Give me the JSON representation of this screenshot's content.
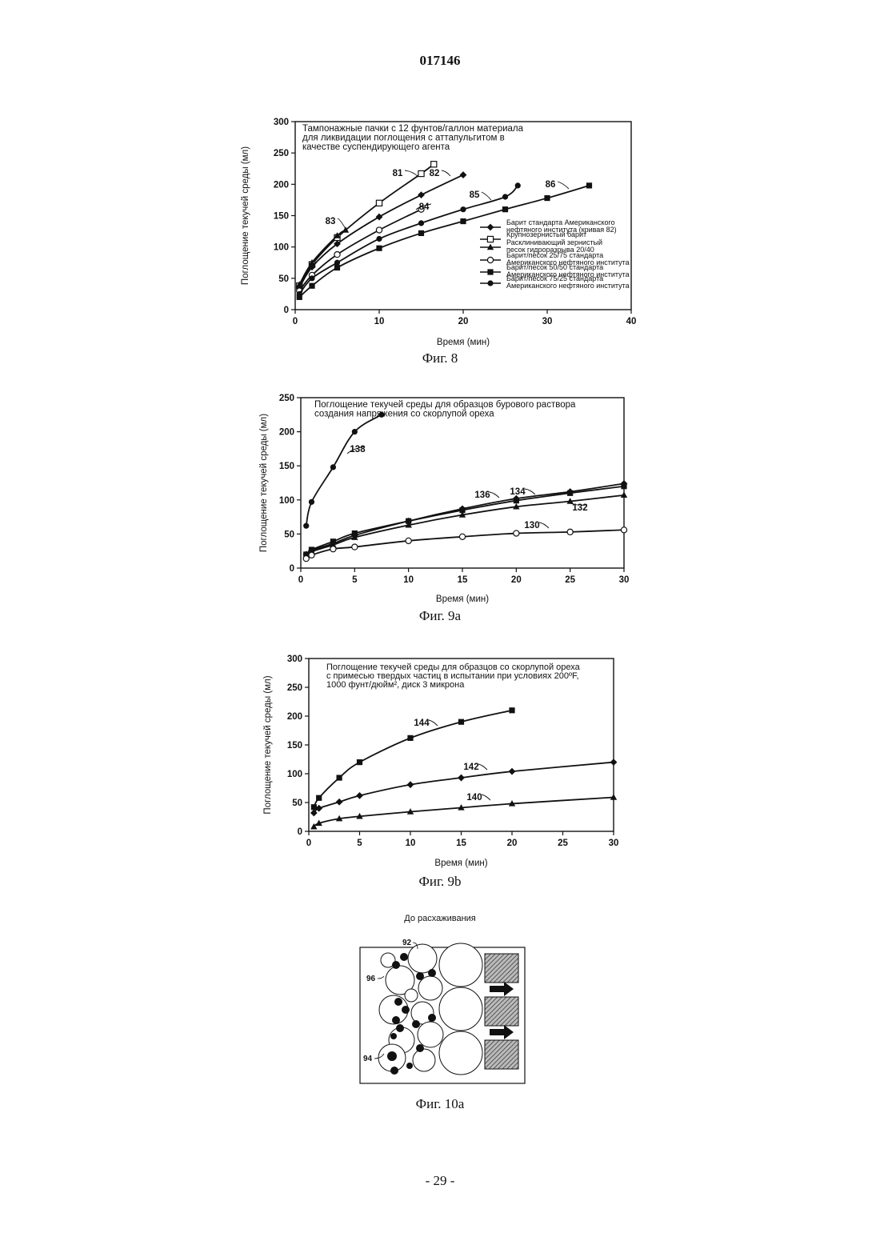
{
  "document": {
    "number": "017146",
    "footer": "- 29 -"
  },
  "chart_data": [
    {
      "id": "fig8",
      "type": "line",
      "caption": "Фиг. 8",
      "title_lines": [
        "Тампонажные пачки с 12 фунтов/галлон материала",
        "для ликвидации поглощения с аттапульгитом в",
        "качестве суспендирующего агента"
      ],
      "xlabel": "Время (мин)",
      "ylabel": "Поглощение текучей среды (мл)",
      "xlim": [
        0,
        40
      ],
      "ylim": [
        0,
        300
      ],
      "xticks": [
        0,
        10,
        20,
        30,
        40
      ],
      "yticks": [
        0,
        50,
        100,
        150,
        200,
        250,
        300
      ],
      "series": [
        {
          "label": "81",
          "marker": "square-open",
          "x": [
            0.5,
            2,
            5,
            10,
            15,
            16.5
          ],
          "y": [
            38,
            72,
            115,
            170,
            217,
            232
          ]
        },
        {
          "label": "82",
          "marker": "diamond",
          "x": [
            0.5,
            2,
            5,
            10,
            15,
            20
          ],
          "y": [
            35,
            68,
            105,
            148,
            183,
            215
          ]
        },
        {
          "label": "83",
          "marker": "triangle",
          "x": [
            0.5,
            2,
            5,
            6
          ],
          "y": [
            40,
            75,
            118,
            127
          ]
        },
        {
          "label": "84",
          "marker": "circle-open",
          "x": [
            0.5,
            2,
            5,
            10,
            15
          ],
          "y": [
            30,
            55,
            88,
            127,
            160
          ]
        },
        {
          "label": "85",
          "marker": "circle",
          "x": [
            0.5,
            2,
            5,
            10,
            15,
            20,
            25,
            26.5
          ],
          "y": [
            25,
            50,
            75,
            113,
            138,
            160,
            180,
            198
          ]
        },
        {
          "label": "86",
          "marker": "square",
          "x": [
            0.5,
            2,
            5,
            10,
            15,
            20,
            25,
            30,
            35
          ],
          "y": [
            20,
            38,
            67,
            98,
            122,
            141,
            160,
            178,
            198
          ]
        }
      ],
      "legend": [
        {
          "marker": "diamond",
          "lines": [
            "Барит стандарта Американского",
            "нефтяного института (кривая 82)"
          ]
        },
        {
          "marker": "square-open",
          "lines": [
            "Крупнозернистый барит"
          ]
        },
        {
          "marker": "triangle",
          "lines": [
            "Расклинивающий зернистый",
            "песок гидроразрыва 20/40"
          ]
        },
        {
          "marker": "circle-open",
          "lines": [
            "Барит/песок 25/75 стандарта",
            "Американского нефтяного института"
          ]
        },
        {
          "marker": "square",
          "lines": [
            "Барит/песок 50/50 стандарта",
            "Американского нефтяного института"
          ]
        },
        {
          "marker": "circle",
          "lines": [
            "Барит/песок 75/25 стандарта",
            "Американского нефтяного института"
          ]
        }
      ]
    },
    {
      "id": "fig9a",
      "type": "line",
      "caption": "Фиг. 9a",
      "title_lines": [
        "Поглощение текучей среды для образцов бурового раствора",
        "создания напряжения со скорлупой ореха"
      ],
      "xlabel": "Время (мин)",
      "ylabel": "Поглощение текучей среды (мл)",
      "xlim": [
        0,
        30
      ],
      "ylim": [
        0,
        250
      ],
      "xticks": [
        0,
        5,
        10,
        15,
        20,
        25,
        30
      ],
      "yticks": [
        0,
        50,
        100,
        150,
        200,
        250
      ],
      "series": [
        {
          "label": "138",
          "marker": "circle",
          "x": [
            0.5,
            1,
            3,
            5,
            7.5
          ],
          "y": [
            62,
            97,
            148,
            200,
            225
          ]
        },
        {
          "label": "136",
          "marker": "square",
          "x": [
            0.5,
            1,
            3,
            5,
            10,
            15,
            20,
            25,
            30
          ],
          "y": [
            20,
            27,
            39,
            51,
            69,
            85,
            99,
            110,
            120
          ]
        },
        {
          "label": "134",
          "marker": "diamond",
          "x": [
            0.5,
            1,
            3,
            5,
            10,
            15,
            20,
            25,
            30
          ],
          "y": [
            20,
            26,
            36,
            48,
            69,
            87,
            102,
            112,
            124
          ]
        },
        {
          "label": "132",
          "marker": "triangle",
          "x": [
            0.5,
            1,
            3,
            5,
            10,
            15,
            20,
            25,
            30
          ],
          "y": [
            18,
            24,
            34,
            45,
            63,
            78,
            90,
            98,
            107
          ]
        },
        {
          "label": "130",
          "marker": "circle-open",
          "x": [
            0.5,
            1,
            3,
            5,
            10,
            15,
            20,
            25,
            30
          ],
          "y": [
            14,
            19,
            28,
            31,
            40,
            46,
            51,
            53,
            56
          ]
        }
      ]
    },
    {
      "id": "fig9b",
      "type": "line",
      "caption": "Фиг. 9b",
      "title_lines": [
        "Поглощение текучей среды для образцов со скорлупой ореха",
        "с примесью твердых частиц в испытании при условиях 200ºF,",
        "1000 фунт/дюйм², диск 3 микрона"
      ],
      "xlabel": "Время (мин)",
      "ylabel": "Поглощение текучей среды (мл)",
      "xlim": [
        0,
        30
      ],
      "ylim": [
        0,
        300
      ],
      "xticks": [
        0,
        5,
        10,
        15,
        20,
        25,
        30
      ],
      "yticks": [
        0,
        50,
        100,
        150,
        200,
        250,
        300
      ],
      "series": [
        {
          "label": "144",
          "marker": "square",
          "x": [
            0.5,
            1,
            3,
            5,
            10,
            15,
            20
          ],
          "y": [
            42,
            58,
            93,
            120,
            162,
            190,
            210
          ]
        },
        {
          "label": "142",
          "marker": "diamond",
          "x": [
            0.5,
            1,
            3,
            5,
            10,
            15,
            20,
            30
          ],
          "y": [
            32,
            40,
            51,
            62,
            81,
            93,
            104,
            120
          ]
        },
        {
          "label": "140",
          "marker": "triangle",
          "x": [
            0.5,
            1,
            3,
            5,
            10,
            15,
            20,
            30
          ],
          "y": [
            8,
            14,
            22,
            26,
            34,
            41,
            48,
            59
          ]
        }
      ]
    }
  ],
  "diagram": {
    "title": "До расхаживания",
    "caption": "Фиг. 10a",
    "labels": [
      "92",
      "96",
      "94"
    ]
  }
}
